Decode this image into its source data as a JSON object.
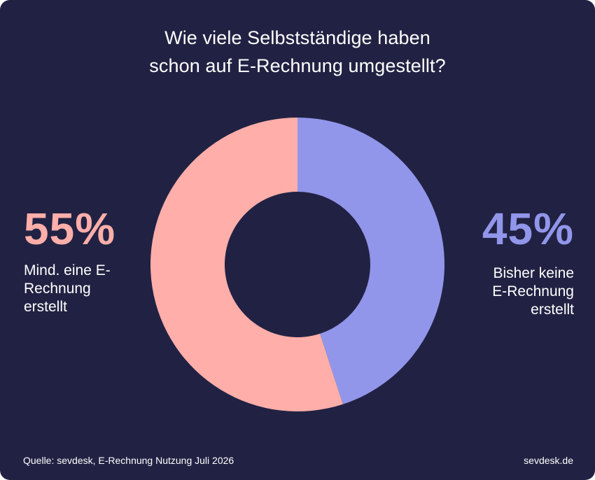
{
  "title_lines": [
    "Wie viele Selbstständige haben",
    "schon auf E-Rechnung umgestellt?"
  ],
  "chart_data": {
    "type": "pie",
    "title": "Wie viele Selbstständige haben schon auf E-Rechnung umgestellt?",
    "donut": true,
    "slices": [
      {
        "label": "Mind. eine E-Rechnung erstellt",
        "value": 55,
        "value_label": "55%",
        "label_lines": [
          "Mind. eine E-",
          "Rechnung",
          "erstellt"
        ],
        "color": "#ffaea9"
      },
      {
        "label": "Bisher keine E-Rechnung erstellt",
        "value": 45,
        "value_label": "45%",
        "label_lines": [
          "Bisher keine",
          "E-Rechnung",
          "erstellt"
        ],
        "color": "#9196ea"
      }
    ]
  },
  "footer": {
    "source": "Quelle: sevdesk, E-Rechnung Nutzung Juli 2026",
    "brand": "sevdesk.de"
  },
  "colors": {
    "background": "#212243",
    "text": "#ffffff",
    "pink": "#ffaea9",
    "purple": "#9196ea"
  }
}
